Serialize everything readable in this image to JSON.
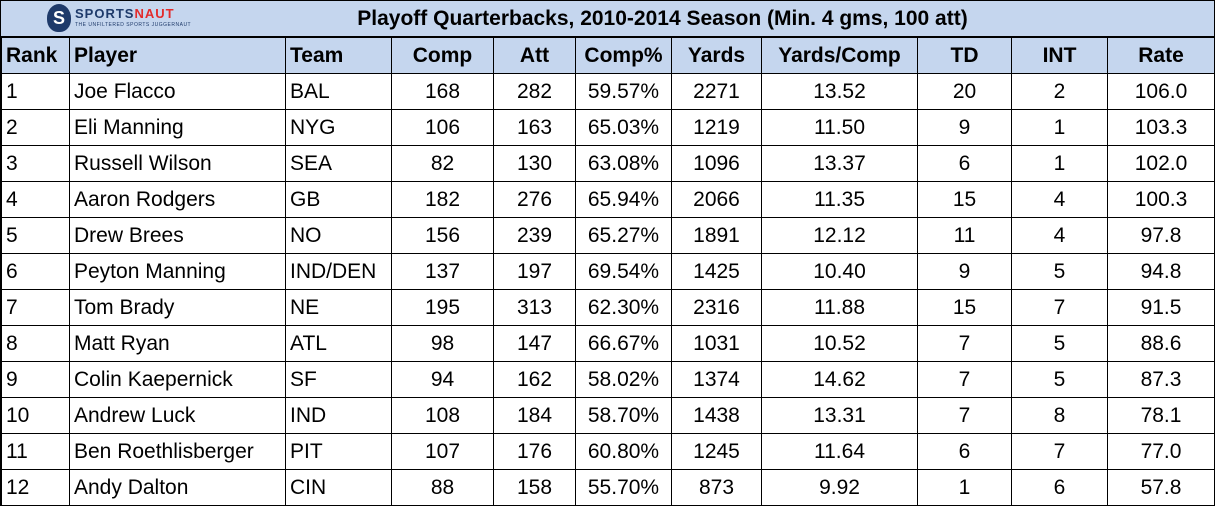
{
  "title": "Playoff Quarterbacks, 2010-2014 Season (Min. 4 gms, 100 att)",
  "logo": {
    "name_part1": "SPORTS",
    "name_part2": "NAUT",
    "tagline": "THE UNFILTERED SPORTS JUGGERNAUT"
  },
  "chart_data": {
    "type": "table",
    "title": "Playoff Quarterbacks, 2010-2014 Season (Min. 4 gms, 100 att)",
    "columns": [
      "Rank",
      "Player",
      "Team",
      "Comp",
      "Att",
      "Comp%",
      "Yards",
      "Yards/Comp",
      "TD",
      "INT",
      "Rate"
    ],
    "rows": [
      [
        "1",
        "Joe Flacco",
        "BAL",
        "168",
        "282",
        "59.57%",
        "2271",
        "13.52",
        "20",
        "2",
        "106.0"
      ],
      [
        "2",
        "Eli Manning",
        "NYG",
        "106",
        "163",
        "65.03%",
        "1219",
        "11.50",
        "9",
        "1",
        "103.3"
      ],
      [
        "3",
        "Russell Wilson",
        "SEA",
        "82",
        "130",
        "63.08%",
        "1096",
        "13.37",
        "6",
        "1",
        "102.0"
      ],
      [
        "4",
        "Aaron Rodgers",
        "GB",
        "182",
        "276",
        "65.94%",
        "2066",
        "11.35",
        "15",
        "4",
        "100.3"
      ],
      [
        "5",
        "Drew Brees",
        "NO",
        "156",
        "239",
        "65.27%",
        "1891",
        "12.12",
        "11",
        "4",
        "97.8"
      ],
      [
        "6",
        "Peyton Manning",
        "IND/DEN",
        "137",
        "197",
        "69.54%",
        "1425",
        "10.40",
        "9",
        "5",
        "94.8"
      ],
      [
        "7",
        "Tom Brady",
        "NE",
        "195",
        "313",
        "62.30%",
        "2316",
        "11.88",
        "15",
        "7",
        "91.5"
      ],
      [
        "8",
        "Matt Ryan",
        "ATL",
        "98",
        "147",
        "66.67%",
        "1031",
        "10.52",
        "7",
        "5",
        "88.6"
      ],
      [
        "9",
        "Colin Kaepernick",
        "SF",
        "94",
        "162",
        "58.02%",
        "1374",
        "14.62",
        "7",
        "5",
        "87.3"
      ],
      [
        "10",
        "Andrew Luck",
        "IND",
        "108",
        "184",
        "58.70%",
        "1438",
        "13.31",
        "7",
        "8",
        "78.1"
      ],
      [
        "11",
        "Ben Roethlisberger",
        "PIT",
        "107",
        "176",
        "60.80%",
        "1245",
        "11.64",
        "6",
        "7",
        "77.0"
      ],
      [
        "12",
        "Andy Dalton",
        "CIN",
        "88",
        "158",
        "55.70%",
        "873",
        "9.92",
        "1",
        "6",
        "57.8"
      ]
    ]
  },
  "colors": {
    "header_bg": "#c5d6ee",
    "logo_blue": "#1e3a6a",
    "logo_red": "#e32b2b"
  }
}
